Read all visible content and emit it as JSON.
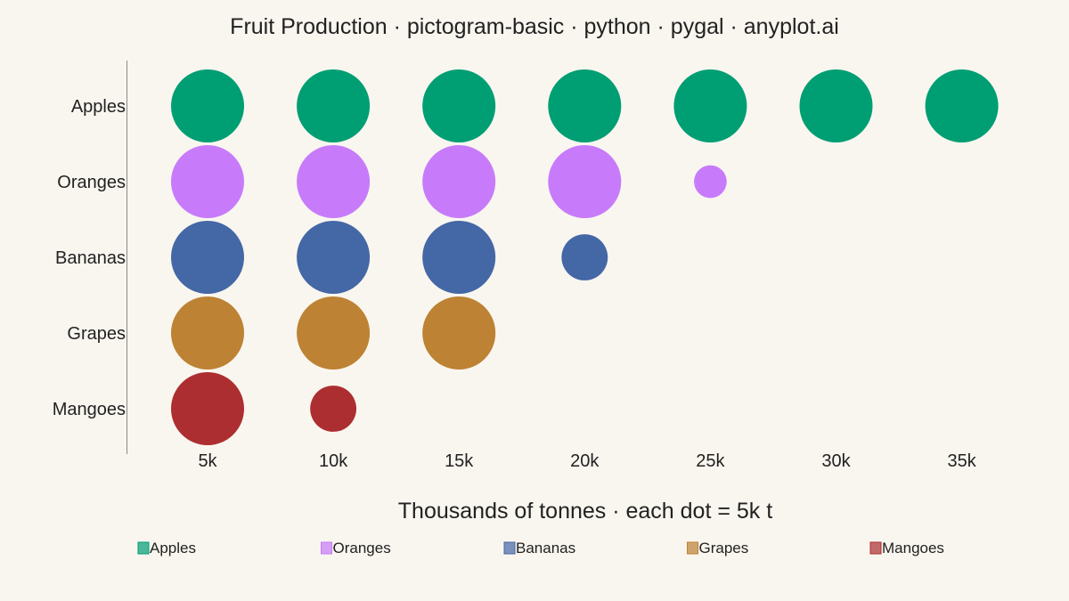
{
  "chart_data": {
    "type": "pictogram",
    "title": "Fruit Production · pictogram-basic · python · pygal · anyplot.ai",
    "xlabel": "Thousands of tonnes · each dot = 5k t",
    "unit_per_dot": 5,
    "categories": [
      "Apples",
      "Oranges",
      "Bananas",
      "Grapes",
      "Mangoes"
    ],
    "values": [
      35,
      21,
      17,
      15,
      7
    ],
    "x_ticks": [
      "5k",
      "10k",
      "15k",
      "20k",
      "25k",
      "30k",
      "35k"
    ],
    "xlim": [
      5,
      35
    ],
    "colors": [
      "#009e73",
      "#c77bfa",
      "#4467a6",
      "#bd8233",
      "#ad2e30"
    ],
    "legend": {
      "position": "bottom",
      "entries": [
        "Apples",
        "Oranges",
        "Bananas",
        "Grapes",
        "Mangoes"
      ]
    },
    "grid": false
  }
}
